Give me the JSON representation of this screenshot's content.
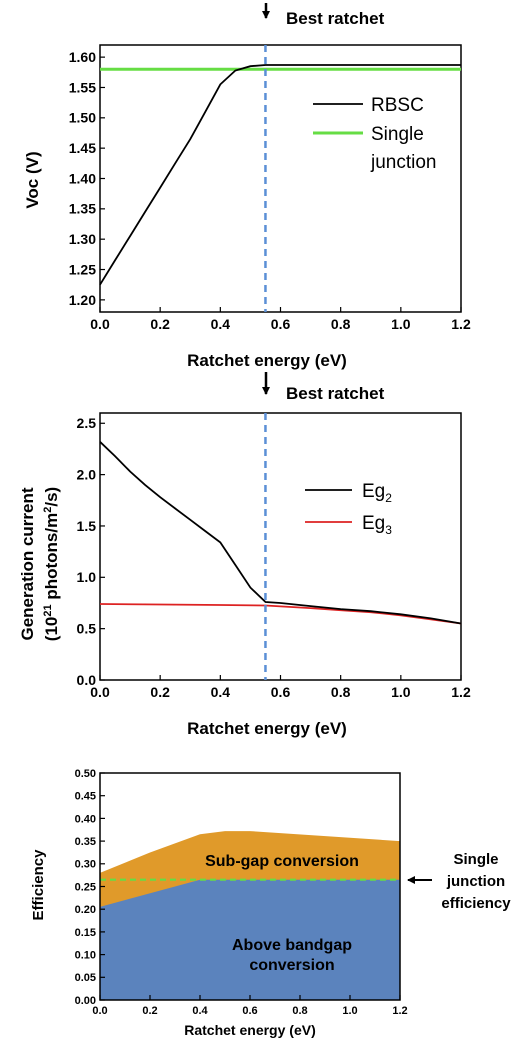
{
  "colors": {
    "black": "#000000",
    "rbsc": "#000000",
    "single": "#66dd44",
    "eg2": "#000000",
    "eg3": "#dd2222",
    "dashed": "#5b8fd6",
    "subgap": "#e09a2a",
    "above": "#5b83bd",
    "single_eff": "#66dd44"
  },
  "chart_data": [
    {
      "type": "line",
      "annotation": "Best ratchet",
      "marker_x": 0.55,
      "xlabel": "Ratchet energy (eV)",
      "ylabel": "Voc (V)",
      "xlim": [
        0.0,
        1.2
      ],
      "ylim": [
        1.18,
        1.62
      ],
      "xticks": [
        "0.0",
        "0.2",
        "0.4",
        "0.6",
        "0.8",
        "1.0",
        "1.2"
      ],
      "yticks": [
        "1.20",
        "1.25",
        "1.30",
        "1.35",
        "1.40",
        "1.45",
        "1.50",
        "1.55",
        "1.60"
      ],
      "series": [
        {
          "name": "RBSC",
          "points": [
            [
              0.0,
              1.225
            ],
            [
              0.05,
              1.265
            ],
            [
              0.1,
              1.305
            ],
            [
              0.15,
              1.345
            ],
            [
              0.2,
              1.385
            ],
            [
              0.25,
              1.425
            ],
            [
              0.3,
              1.465
            ],
            [
              0.35,
              1.51
            ],
            [
              0.4,
              1.555
            ],
            [
              0.45,
              1.578
            ],
            [
              0.5,
              1.585
            ],
            [
              0.55,
              1.587
            ],
            [
              0.7,
              1.587
            ],
            [
              1.0,
              1.587
            ],
            [
              1.2,
              1.587
            ]
          ]
        },
        {
          "name": "Single junction",
          "points": [
            [
              0.0,
              1.58
            ],
            [
              1.2,
              1.58
            ]
          ]
        }
      ],
      "legend": [
        "RBSC",
        "Single",
        "junction"
      ]
    },
    {
      "type": "line",
      "annotation": "Best ratchet",
      "marker_x": 0.55,
      "xlabel": "Ratchet energy (eV)",
      "ylabel_line1": "Generation current",
      "ylabel_line2_prefix": "(10",
      "ylabel_line2_exp": "21",
      "ylabel_line2_mid": " photons/m",
      "ylabel_line2_exp2": "2",
      "ylabel_line2_suffix": "/s)",
      "xlim": [
        0.0,
        1.2
      ],
      "ylim": [
        0.0,
        2.6
      ],
      "xticks": [
        "0.0",
        "0.2",
        "0.4",
        "0.6",
        "0.8",
        "1.0",
        "1.2"
      ],
      "yticks": [
        "0.0",
        "0.5",
        "1.0",
        "1.5",
        "2.0",
        "2.5"
      ],
      "series": [
        {
          "name_base": "Eg",
          "name_sub": "2",
          "points": [
            [
              0.0,
              2.32
            ],
            [
              0.05,
              2.18
            ],
            [
              0.1,
              2.03
            ],
            [
              0.15,
              1.9
            ],
            [
              0.2,
              1.78
            ],
            [
              0.25,
              1.67
            ],
            [
              0.3,
              1.56
            ],
            [
              0.35,
              1.45
            ],
            [
              0.4,
              1.34
            ],
            [
              0.45,
              1.12
            ],
            [
              0.5,
              0.9
            ],
            [
              0.55,
              0.76
            ],
            [
              0.6,
              0.75
            ],
            [
              0.7,
              0.72
            ],
            [
              0.8,
              0.69
            ],
            [
              0.9,
              0.67
            ],
            [
              1.0,
              0.64
            ],
            [
              1.1,
              0.6
            ],
            [
              1.2,
              0.55
            ]
          ]
        },
        {
          "name_base": "Eg",
          "name_sub": "3",
          "points": [
            [
              0.0,
              0.74
            ],
            [
              0.2,
              0.735
            ],
            [
              0.4,
              0.73
            ],
            [
              0.55,
              0.725
            ],
            [
              0.7,
              0.7
            ],
            [
              0.8,
              0.68
            ],
            [
              0.9,
              0.66
            ],
            [
              1.0,
              0.63
            ],
            [
              1.1,
              0.59
            ],
            [
              1.2,
              0.55
            ]
          ]
        }
      ]
    },
    {
      "type": "area",
      "xlabel": "Ratchet energy (eV)",
      "ylabel": "Efficiency",
      "xlim": [
        0.0,
        1.2
      ],
      "ylim": [
        0.0,
        0.5
      ],
      "xticks": [
        "0.0",
        "0.2",
        "0.4",
        "0.6",
        "0.8",
        "1.0",
        "1.2"
      ],
      "yticks": [
        "0.00",
        "0.05",
        "0.10",
        "0.15",
        "0.20",
        "0.25",
        "0.30",
        "0.35",
        "0.40",
        "0.45",
        "0.50"
      ],
      "above_bandgap": [
        [
          0.0,
          0.205
        ],
        [
          0.4,
          0.265
        ],
        [
          1.2,
          0.265
        ]
      ],
      "total": [
        [
          0.0,
          0.28
        ],
        [
          0.2,
          0.325
        ],
        [
          0.4,
          0.365
        ],
        [
          0.5,
          0.372
        ],
        [
          0.6,
          0.372
        ],
        [
          1.2,
          0.35
        ]
      ],
      "single_junction_efficiency": 0.265,
      "labels": {
        "subgap": "Sub-gap conversion",
        "above_line1": "Above bandgap",
        "above_line2": "conversion",
        "single_line1": "Single",
        "single_line2": "junction",
        "single_line3": "efficiency"
      }
    }
  ]
}
